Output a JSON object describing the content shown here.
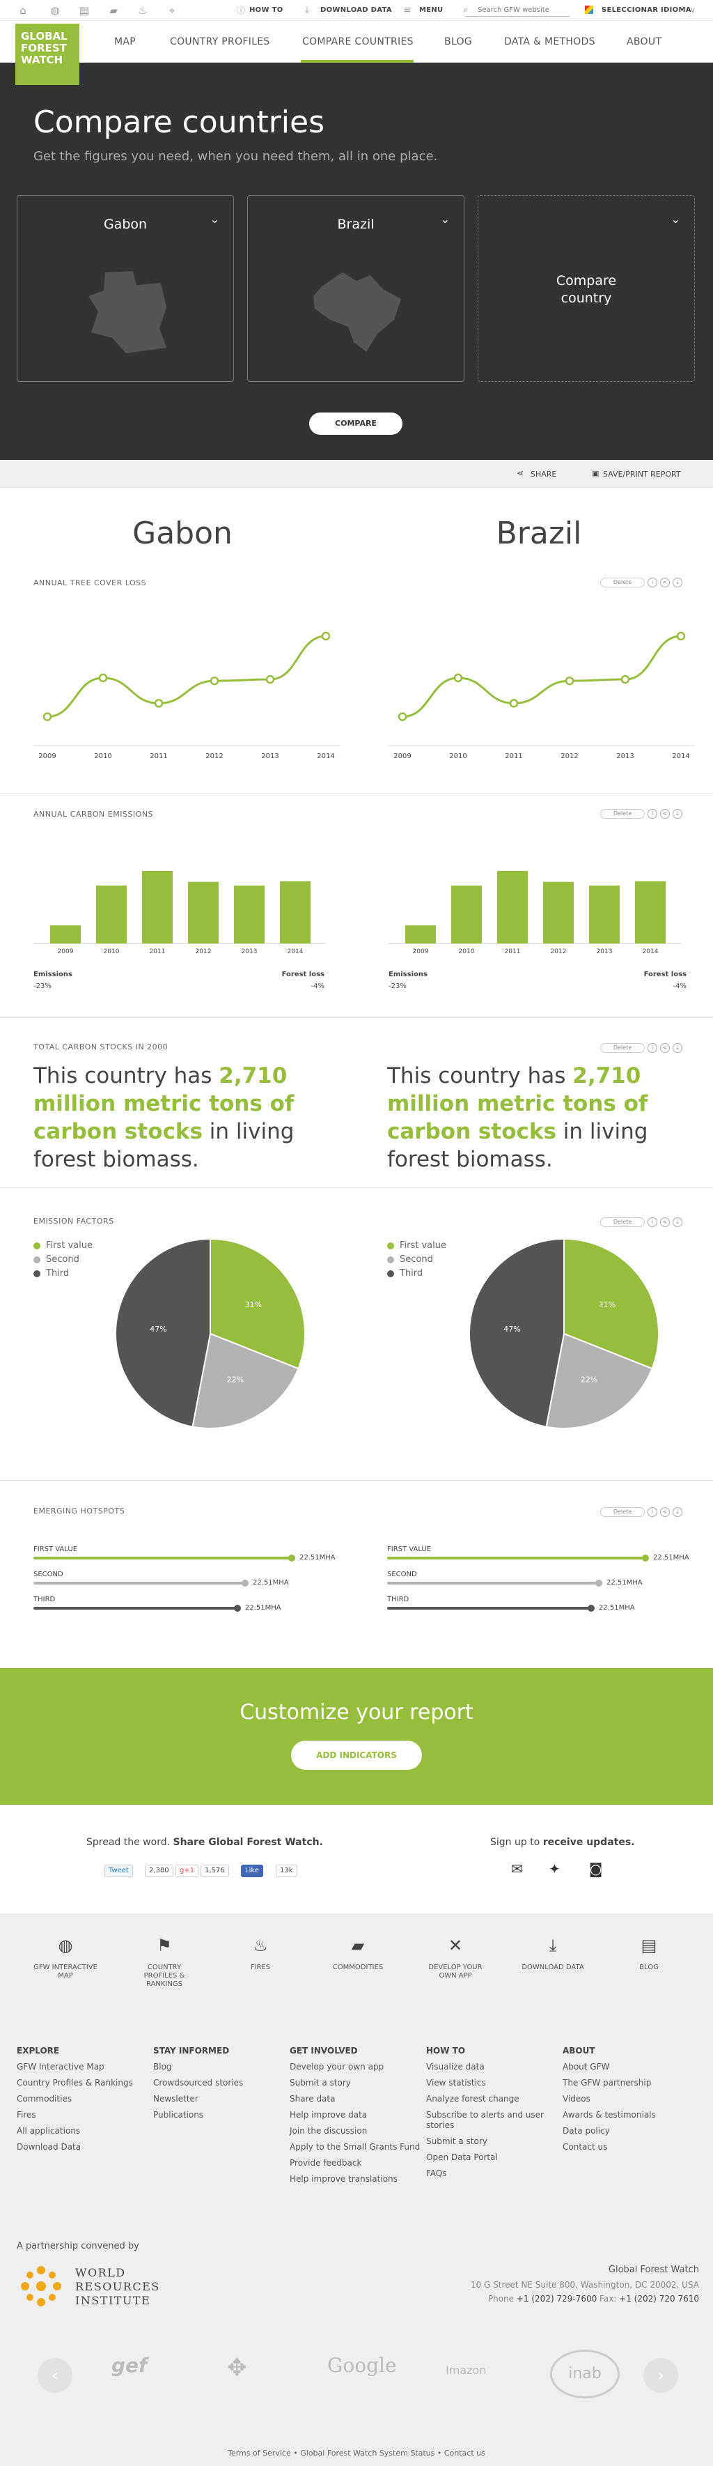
{
  "topbar": {
    "icons": [
      "home-icon",
      "globe-icon",
      "document-icon",
      "truck-icon",
      "fire-icon",
      "pin-icon"
    ],
    "how_to": "HOW TO",
    "download": "DOWNLOAD DATA",
    "menu": "MENU",
    "search_placeholder": "Search GFW website",
    "language": "SELECCIONAR IDIOMA"
  },
  "logo": {
    "line1": "GLOBAL",
    "line2": "FOREST",
    "line3": "WATCH"
  },
  "nav": {
    "items": [
      "MAP",
      "COUNTRY PROFILES",
      "COMPARE COUNTRIES",
      "BLOG",
      "DATA & METHODS",
      "ABOUT"
    ],
    "active": "COMPARE COUNTRIES"
  },
  "hero": {
    "title": "Compare countries",
    "subtitle": "Get the figures you need, when you need them, all in one place.",
    "country1": "Gabon",
    "country2": "Brazil",
    "compare_line1": "Compare",
    "compare_line2": "country",
    "compare_button": "COMPARE"
  },
  "sharebar": {
    "share": "SHARE",
    "print": "SAVE/PRINT REPORT"
  },
  "countries": {
    "left": "Gabon",
    "right": "Brazil"
  },
  "tools": {
    "delete": "Delete"
  },
  "sections": {
    "tree_cover_loss": "ANNUAL TREE COVER LOSS",
    "carbon_emissions": "ANNUAL CARBON EMISSIONS",
    "carbon_stocks": "TOTAL CARBON STOCKS IN 2000",
    "emission_factors": "EMISSION FACTORS",
    "hotspots": "EMERGING HOTSPOTS"
  },
  "chart_data": [
    {
      "type": "line",
      "title": "ANNUAL TREE COVER LOSS",
      "country": "Gabon",
      "categories": [
        "2009",
        "2010",
        "2011",
        "2012",
        "2013",
        "2014"
      ],
      "values": [
        1,
        3.6,
        1.9,
        3.4,
        3.5,
        6.4
      ],
      "ylim": [
        0,
        7
      ]
    },
    {
      "type": "line",
      "title": "ANNUAL TREE COVER LOSS",
      "country": "Brazil",
      "categories": [
        "2009",
        "2010",
        "2011",
        "2012",
        "2013",
        "2014"
      ],
      "values": [
        1,
        3.6,
        1.9,
        3.4,
        3.5,
        6.4
      ],
      "ylim": [
        0,
        7
      ]
    },
    {
      "type": "bar",
      "title": "ANNUAL CARBON EMISSIONS",
      "country": "Gabon",
      "categories": [
        "2009",
        "2010",
        "2011",
        "2012",
        "2013",
        "2014"
      ],
      "values": [
        25,
        80,
        100,
        85,
        80,
        86
      ],
      "ylim": [
        0,
        100
      ]
    },
    {
      "type": "bar",
      "title": "ANNUAL CARBON EMISSIONS",
      "country": "Brazil",
      "categories": [
        "2009",
        "2010",
        "2011",
        "2012",
        "2013",
        "2014"
      ],
      "values": [
        25,
        80,
        100,
        85,
        80,
        86
      ],
      "ylim": [
        0,
        100
      ]
    },
    {
      "type": "pie",
      "title": "EMISSION FACTORS",
      "country": "Gabon",
      "labels": [
        "First value",
        "Second",
        "Third"
      ],
      "values": [
        31,
        22,
        47
      ],
      "colors": [
        "#97bd3d",
        "#b3b3b3",
        "#555555"
      ]
    },
    {
      "type": "pie",
      "title": "EMISSION FACTORS",
      "country": "Brazil",
      "labels": [
        "First value",
        "Second",
        "Third"
      ],
      "values": [
        31,
        22,
        47
      ],
      "colors": [
        "#97bd3d",
        "#b3b3b3",
        "#555555"
      ]
    }
  ],
  "emissions_summary": {
    "left_label": "Emissions",
    "left_value": "-23%",
    "right_label": "Forest loss",
    "right_value": "-4%"
  },
  "carbon_stocks": {
    "pre": "This country has ",
    "highlight": "2,710 million metric tons of carbon stocks",
    "post": " in living forest biomass."
  },
  "pie_labels": [
    "31%",
    "22%",
    "47%"
  ],
  "hotspots": {
    "rows": [
      {
        "label": "FIRST VALUE",
        "value": "22.51MHA",
        "fraction": 1.0,
        "color": "#97bd3d"
      },
      {
        "label": "SECOND",
        "value": "22.51MHA",
        "fraction": 0.82,
        "color": "#b3b3b3"
      },
      {
        "label": "THIRD",
        "value": "22.51MHA",
        "fraction": 0.79,
        "color": "#555555"
      }
    ]
  },
  "customize": {
    "title": "Customize your report",
    "button": "ADD INDICATORS"
  },
  "spread": {
    "text_pre": "Spread the word. ",
    "text_bold": "Share Global Forest Watch.",
    "tweet": "Tweet",
    "tweet_count": "2,380",
    "gplus": "g+1",
    "gplus_count": "1,576",
    "like": "Like",
    "like_count": "13k",
    "signup_pre": "Sign up to ",
    "signup_bold": "receive updates."
  },
  "footer_icons": [
    {
      "icon": "globe-icon",
      "line1": "GFW INTERACTIVE",
      "line2": "MAP"
    },
    {
      "icon": "country-profiles-icon",
      "line1": "COUNTRY",
      "line2": "PROFILES &",
      "line3": "RANKINGS"
    },
    {
      "icon": "fire-icon",
      "line1": "FIRES"
    },
    {
      "icon": "truck-icon",
      "line1": "COMMODITIES"
    },
    {
      "icon": "tools-icon",
      "line1": "DEVELOP YOUR",
      "line2": "OWN APP"
    },
    {
      "icon": "download-icon",
      "line1": "DOWNLOAD DATA"
    },
    {
      "icon": "blog-icon",
      "line1": "BLOG"
    }
  ],
  "footer_cols": [
    {
      "title": "EXPLORE",
      "items": [
        "GFW Interactive Map",
        "Country Profiles & Rankings",
        "Commodities",
        "Fires",
        "All applications",
        "Download Data"
      ]
    },
    {
      "title": "STAY INFORMED",
      "items": [
        "Blog",
        "Crowdsourced stories",
        "Newsletter",
        "Publications"
      ]
    },
    {
      "title": "GET INVOLVED",
      "items": [
        "Develop your own app",
        "Submit a story",
        "Share data",
        "Help improve data",
        "Join the discussion",
        "Apply to the Small Grants Fund",
        "Provide feedback",
        "Help improve translations"
      ]
    },
    {
      "title": "HOW TO",
      "items": [
        "Visualize data",
        "View statistics",
        "Analyze forest change",
        "Subscribe to alerts and user stories",
        "Submit a story",
        "Open Data Portal",
        "FAQs"
      ]
    },
    {
      "title": "ABOUT",
      "items": [
        "About GFW",
        "The GFW partnership",
        "Videos",
        "Awards & testimonials",
        "Data policy",
        "Contact us"
      ]
    }
  ],
  "partnership": {
    "label": "A partnership convened by",
    "wri_line1": "WORLD",
    "wri_line2": "RESOURCES",
    "wri_line3": "INSTITUTE",
    "org": "Global Forest Watch",
    "address": "10 G Street NE Suite 800, Washington, DC 20002, USA",
    "phone_label": "Phone ",
    "phone": "+1 (202) 729-7600",
    "fax_label": " Fax: ",
    "fax": "+1 (202) 720 7610"
  },
  "partners": [
    "gef",
    "Google",
    "Imazon",
    "inab"
  ],
  "bottom_links": "Terms of Service • Global Forest Watch System Status • Contact us"
}
